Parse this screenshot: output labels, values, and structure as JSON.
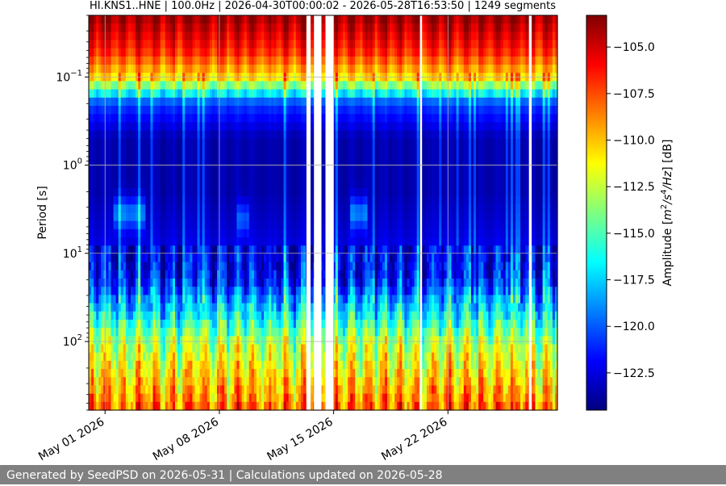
{
  "chart_data": {
    "type": "heatmap",
    "title": "HI.KNS1..HNE | 100.0Hz | 2026-04-30T00:00:02 - 2026-05-28T16:53:50 | 1249 segments",
    "ylabel": "Period [s]",
    "yscale": "log",
    "yinverted": true,
    "ylim": [
      0.02,
      600
    ],
    "xlim": [
      "2026-04-30",
      "2026-05-28T16:53:50"
    ],
    "ytick_labels": [
      {
        "value": 0.1,
        "base": "10",
        "exp": "−1"
      },
      {
        "value": 1,
        "base": "10",
        "exp": "0"
      },
      {
        "value": 10,
        "base": "10",
        "exp": "1"
      },
      {
        "value": 100,
        "base": "10",
        "exp": "2"
      }
    ],
    "xtick_labels": [
      {
        "date": "2026-05-01",
        "label": "May 01 2026"
      },
      {
        "date": "2026-05-08",
        "label": "May 08 2026"
      },
      {
        "date": "2026-05-15",
        "label": "May 15 2026"
      },
      {
        "date": "2026-05-22",
        "label": "May 22 2026"
      }
    ],
    "grid": true,
    "colormap": "jet",
    "colorbar": {
      "label": "Amplitude [m²/s⁴/Hz] [dB]",
      "label_main": "Amplitude [",
      "label_unit_1": "m",
      "label_sup_1": "2",
      "label_unit_2": "/s",
      "label_sup_2": "4",
      "label_unit_3": "/Hz",
      "label_end": "] [dB]",
      "range": [
        -124.5,
        -103.3
      ],
      "ticks": [
        {
          "value": -105.0,
          "label": "−105.0"
        },
        {
          "value": -107.5,
          "label": "−107.5"
        },
        {
          "value": -110.0,
          "label": "−110.0"
        },
        {
          "value": -112.5,
          "label": "−112.5"
        },
        {
          "value": -115.0,
          "label": "−115.0"
        },
        {
          "value": -117.5,
          "label": "−117.5"
        },
        {
          "value": -120.0,
          "label": "−120.0"
        },
        {
          "value": -122.5,
          "label": "−122.5"
        }
      ]
    },
    "data_gaps": [
      [
        "2026-05-13T08:00",
        "2026-05-13T14:00"
      ],
      [
        "2026-05-13T19:00",
        "2026-05-14T06:00"
      ],
      [
        "2026-05-14T12:00",
        "2026-05-15T00:00"
      ],
      [
        "2026-05-20T07:00",
        "2026-05-20T10:00"
      ],
      [
        "2026-05-26T23:00",
        "2026-05-27T03:00"
      ]
    ],
    "level_profile": [
      {
        "period": 0.02,
        "dB": -103.8
      },
      {
        "period": 0.05,
        "dB": -106.5
      },
      {
        "period": 0.1,
        "dB": -110.5
      },
      {
        "period": 0.2,
        "dB": -120.5
      },
      {
        "period": 0.5,
        "dB": -123.5
      },
      {
        "period": 2,
        "dB": -123.5
      },
      {
        "period": 5,
        "dB": -122.8
      },
      {
        "period": 20,
        "dB": -121.5
      },
      {
        "period": 50,
        "dB": -116.5
      },
      {
        "period": 100,
        "dB": -113.0
      },
      {
        "period": 300,
        "dB": -110.0
      },
      {
        "period": 600,
        "dB": -108.0
      }
    ],
    "features": [
      {
        "kind": "microseism-blob",
        "start": "2026-05-01T12:00",
        "end": "2026-05-03T12:00",
        "period": 3.5,
        "dB_boost": 4
      },
      {
        "kind": "microseism-blob",
        "start": "2026-05-09T00:00",
        "end": "2026-05-09T18:00",
        "period": 4,
        "dB_boost": 3
      },
      {
        "kind": "microseism-blob",
        "start": "2026-05-16T00:00",
        "end": "2026-05-17T00:00",
        "period": 3.5,
        "dB_boost": 4
      }
    ]
  },
  "footer": {
    "text": "Generated by SeedPSD on 2026-05-31 | Calculations updated on 2026-05-28"
  }
}
